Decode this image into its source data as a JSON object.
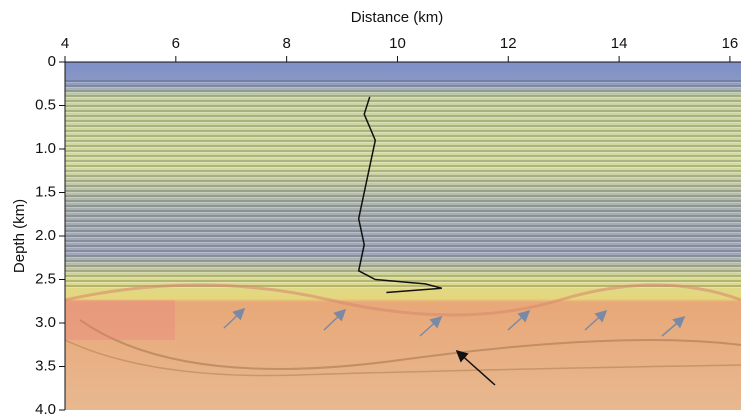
{
  "chart_data": {
    "type": "line",
    "x_label": "Distance (km)",
    "y_label": "Depth (km)",
    "xlim": [
      4,
      16.2
    ],
    "ylim": [
      0,
      4
    ],
    "y_inverted": true,
    "xticks": [
      4,
      6,
      8,
      10,
      12,
      14,
      16
    ],
    "yticks": [
      0,
      0.5,
      {
        "value": 1,
        "label": "1.0"
      },
      1.5,
      {
        "value": 2,
        "label": "2.0"
      },
      2.5,
      {
        "value": 3,
        "label": "3.0"
      },
      3.5,
      {
        "value": 4,
        "label": "4.0"
      }
    ],
    "x": [
      9.5,
      9.4,
      9.6,
      9.5,
      9.4,
      9.3,
      9.4,
      9.3,
      9.6,
      10.5,
      10.8,
      9.8
    ],
    "series": [
      {
        "color": "#111111",
        "values": [
          0.4,
          0.6,
          0.9,
          1.2,
          1.5,
          1.8,
          2.1,
          2.4,
          2.5,
          2.55,
          2.6,
          2.65
        ]
      }
    ]
  }
}
